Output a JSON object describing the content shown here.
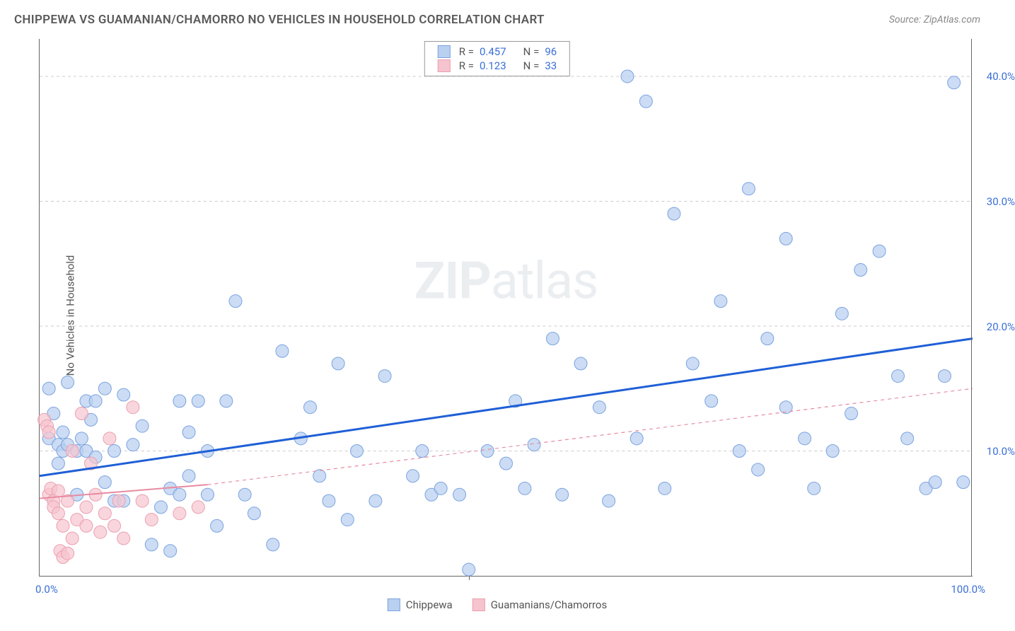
{
  "header": {
    "title": "CHIPPEWA VS GUAMANIAN/CHAMORRO NO VEHICLES IN HOUSEHOLD CORRELATION CHART",
    "source": "Source: ZipAtlas.com"
  },
  "watermark": {
    "part1": "ZIP",
    "part2": "atlas"
  },
  "chart": {
    "type": "scatter",
    "ylabel": "No Vehicles in Household",
    "xlim": [
      0,
      100
    ],
    "ylim": [
      0,
      43
    ],
    "yticks": [
      10,
      20,
      30,
      40
    ],
    "ytick_labels": [
      "10.0%",
      "20.0%",
      "30.0%",
      "40.0%"
    ],
    "xtick_left": "0.0%",
    "xtick_right": "100.0%",
    "xtick_mid_pos": 46,
    "grid_color": "#cccccc",
    "background_color": "#ffffff",
    "axis_color": "#666666",
    "series": [
      {
        "name": "Chippewa",
        "color_fill": "#b9d0f0",
        "color_stroke": "#7ca3df",
        "marker_radius": 9,
        "marker_opacity": 0.75,
        "line_color": "#1f5fd6",
        "line_width": 3,
        "line_dash": "none",
        "regression": {
          "x1": 0,
          "y1": 8.0,
          "x2": 100,
          "y2": 19.0
        },
        "extrapolate_dash": false,
        "R": 0.457,
        "N": 96,
        "points": [
          [
            1,
            15
          ],
          [
            1,
            11
          ],
          [
            1.5,
            13
          ],
          [
            2,
            10.5
          ],
          [
            2,
            9
          ],
          [
            2.5,
            11.5
          ],
          [
            2.5,
            10
          ],
          [
            3,
            15.5
          ],
          [
            3,
            10.5
          ],
          [
            4,
            10
          ],
          [
            4,
            6.5
          ],
          [
            4.5,
            11
          ],
          [
            5,
            14
          ],
          [
            5,
            10
          ],
          [
            5.5,
            12.5
          ],
          [
            6,
            9.5
          ],
          [
            6,
            14
          ],
          [
            7,
            7.5
          ],
          [
            7,
            15
          ],
          [
            8,
            10
          ],
          [
            8,
            6
          ],
          [
            9,
            14.5
          ],
          [
            9,
            6
          ],
          [
            10,
            10.5
          ],
          [
            11,
            12
          ],
          [
            12,
            2.5
          ],
          [
            13,
            5.5
          ],
          [
            14,
            7
          ],
          [
            14,
            2
          ],
          [
            15,
            14
          ],
          [
            15,
            6.5
          ],
          [
            16,
            11.5
          ],
          [
            16,
            8
          ],
          [
            17,
            14
          ],
          [
            18,
            10
          ],
          [
            18,
            6.5
          ],
          [
            19,
            4
          ],
          [
            20,
            14
          ],
          [
            21,
            22
          ],
          [
            22,
            6.5
          ],
          [
            23,
            5
          ],
          [
            25,
            2.5
          ],
          [
            26,
            18
          ],
          [
            28,
            11
          ],
          [
            29,
            13.5
          ],
          [
            30,
            8
          ],
          [
            31,
            6
          ],
          [
            32,
            17
          ],
          [
            33,
            4.5
          ],
          [
            34,
            10
          ],
          [
            36,
            6
          ],
          [
            37,
            16
          ],
          [
            40,
            8
          ],
          [
            41,
            10
          ],
          [
            42,
            6.5
          ],
          [
            43,
            7
          ],
          [
            45,
            6.5
          ],
          [
            46,
            0.5
          ],
          [
            48,
            10
          ],
          [
            50,
            9
          ],
          [
            51,
            14
          ],
          [
            52,
            7
          ],
          [
            53,
            10.5
          ],
          [
            55,
            19
          ],
          [
            56,
            6.5
          ],
          [
            58,
            17
          ],
          [
            60,
            13.5
          ],
          [
            61,
            6
          ],
          [
            63,
            40
          ],
          [
            64,
            11
          ],
          [
            65,
            38
          ],
          [
            67,
            7
          ],
          [
            68,
            29
          ],
          [
            70,
            17
          ],
          [
            72,
            14
          ],
          [
            73,
            22
          ],
          [
            75,
            10
          ],
          [
            76,
            31
          ],
          [
            77,
            8.5
          ],
          [
            78,
            19
          ],
          [
            80,
            13.5
          ],
          [
            80,
            27
          ],
          [
            82,
            11
          ],
          [
            83,
            7
          ],
          [
            85,
            10
          ],
          [
            86,
            21
          ],
          [
            87,
            13
          ],
          [
            88,
            24.5
          ],
          [
            90,
            26
          ],
          [
            92,
            16
          ],
          [
            93,
            11
          ],
          [
            95,
            7
          ],
          [
            96,
            7.5
          ],
          [
            97,
            16
          ],
          [
            98,
            39.5
          ],
          [
            99,
            7.5
          ]
        ]
      },
      {
        "name": "Guamanians/Chamorros",
        "color_fill": "#f6c4ce",
        "color_stroke": "#eb9fb0",
        "marker_radius": 9,
        "marker_opacity": 0.7,
        "line_color": "#e88aa0",
        "line_width": 2,
        "line_dash": "none",
        "regression": {
          "x1": 0,
          "y1": 6.2,
          "x2": 18,
          "y2": 7.3
        },
        "extrapolate_dash": true,
        "extrapolate": {
          "x2": 100,
          "y2": 15.0
        },
        "R": 0.123,
        "N": 33,
        "points": [
          [
            0.5,
            12.5
          ],
          [
            0.8,
            12
          ],
          [
            1,
            11.5
          ],
          [
            1,
            6.5
          ],
          [
            1.2,
            7
          ],
          [
            1.5,
            6
          ],
          [
            1.5,
            5.5
          ],
          [
            2,
            6.8
          ],
          [
            2,
            5
          ],
          [
            2.2,
            2
          ],
          [
            2.5,
            4
          ],
          [
            2.5,
            1.5
          ],
          [
            3,
            6
          ],
          [
            3,
            1.8
          ],
          [
            3.5,
            10
          ],
          [
            3.5,
            3
          ],
          [
            4,
            4.5
          ],
          [
            4.5,
            13
          ],
          [
            5,
            5.5
          ],
          [
            5,
            4
          ],
          [
            5.5,
            9
          ],
          [
            6,
            6.5
          ],
          [
            6.5,
            3.5
          ],
          [
            7,
            5
          ],
          [
            7.5,
            11
          ],
          [
            8,
            4
          ],
          [
            8.5,
            6
          ],
          [
            9,
            3
          ],
          [
            10,
            13.5
          ],
          [
            11,
            6
          ],
          [
            12,
            4.5
          ],
          [
            15,
            5
          ],
          [
            17,
            5.5
          ]
        ]
      }
    ]
  },
  "legend_top": {
    "rows": [
      {
        "swatch_fill": "#b9d0f0",
        "swatch_stroke": "#7ca3df",
        "r_label": "R =",
        "r_val": "0.457",
        "n_label": "N =",
        "n_val": "96"
      },
      {
        "swatch_fill": "#f6c4ce",
        "swatch_stroke": "#eb9fb0",
        "r_label": "R =",
        "r_val": " 0.123",
        "n_label": "N =",
        "n_val": "33"
      }
    ]
  },
  "legend_bottom": {
    "items": [
      {
        "swatch_fill": "#b9d0f0",
        "swatch_stroke": "#7ca3df",
        "label": "Chippewa"
      },
      {
        "swatch_fill": "#f6c4ce",
        "swatch_stroke": "#eb9fb0",
        "label": "Guamanians/Chamorros"
      }
    ]
  }
}
